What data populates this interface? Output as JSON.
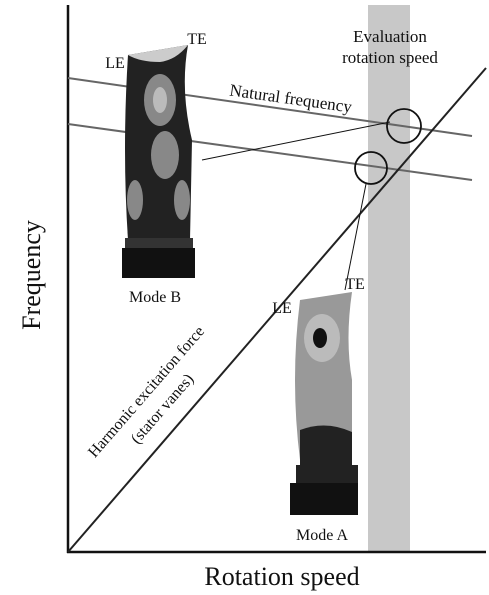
{
  "axes": {
    "x_label": "Rotation speed",
    "y_label": "Frequency"
  },
  "evaluation": {
    "line1": "Evaluation",
    "line2": "rotation speed"
  },
  "natural_frequency": "Natural frequency",
  "excitation": {
    "line1": "Harmonic excitation force",
    "line2": "(stator vanes)"
  },
  "mode_b": {
    "le": "LE",
    "te": "TE",
    "label": "Mode B"
  },
  "mode_a": {
    "le": "LE",
    "te": "TE",
    "label": "Mode A"
  }
}
